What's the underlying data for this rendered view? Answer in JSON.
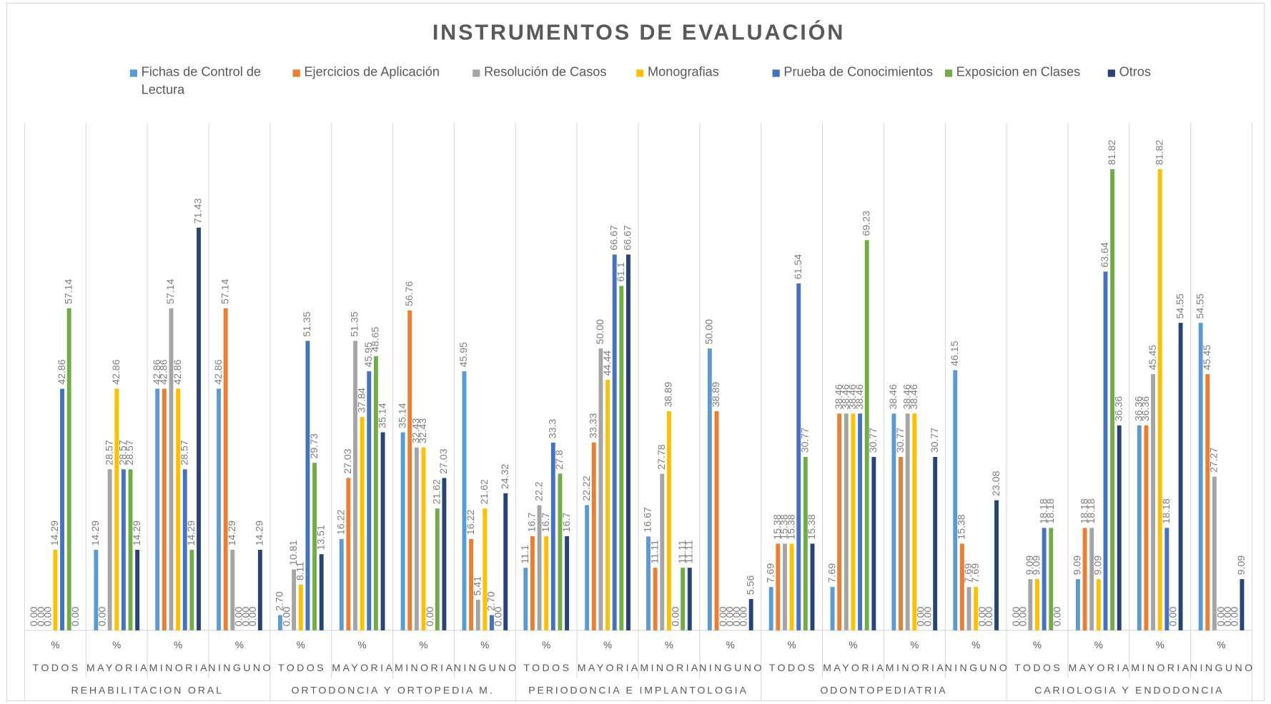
{
  "chart_data": {
    "type": "bar",
    "title": "INSTRUMENTOS  DE EVALUACIÓN",
    "category_unit": "%",
    "categories": [
      "TODOS",
      "MAYORIA",
      "MINORIA",
      "NINGUNO",
      "TODOS",
      "MAYORIA",
      "MINORIA",
      "NINGUNO",
      "TODOS",
      "MAYORIA",
      "MINORIA",
      "NINGUNO",
      "TODOS",
      "MAYORIA",
      "MINORIA",
      "NINGUNO",
      "TODOS",
      "MAYORIA",
      "MINORIA",
      "NINGUNO"
    ],
    "groups": [
      "REHABILITACION ORAL",
      "ORTODONCIA Y ORTOPEDIA M.",
      "PERIODONCIA E IMPLANTOLOGIA",
      "ODONTOPEDIATRIA",
      "CARIOLOGIA Y ENDODONCIA"
    ],
    "ylim": [
      0,
      90
    ],
    "series": [
      {
        "name": "Fichas de Control de Lectura",
        "color": "#5b9bd5",
        "values": [
          0,
          14.29,
          42.86,
          42.86,
          2.7,
          16.22,
          35.14,
          45.95,
          11.1,
          22.22,
          16.67,
          50.0,
          7.69,
          7.69,
          38.46,
          46.15,
          0,
          9.09,
          36.36,
          54.55
        ],
        "value_labels": [
          "0.00",
          "14.29",
          "42.86",
          "42.86",
          "2.70",
          "16.22",
          "35.14",
          "45.95",
          "11.1",
          "22.22",
          "16.67",
          "50.00",
          "7.69",
          "7.69",
          "38.46",
          "46.15",
          "0.00",
          "9.09",
          "36.36",
          "54.55"
        ]
      },
      {
        "name": "Ejercicios de Aplicación",
        "color": "#ed7d31",
        "values": [
          0,
          0,
          42.86,
          57.14,
          0,
          27.03,
          56.76,
          16.22,
          16.7,
          33.33,
          11.11,
          38.89,
          15.38,
          38.46,
          30.77,
          15.38,
          0,
          18.18,
          36.36,
          45.45
        ],
        "value_labels": [
          "0.00",
          "0.00",
          "42.86",
          "57.14",
          "0.00",
          "27.03",
          "56.76",
          "16.22",
          "16.7",
          "33.33",
          "11.11",
          "38.89",
          "15.38",
          "38.46",
          "30.77",
          "15.38",
          "0.00",
          "18.18",
          "36.36",
          "45.45"
        ]
      },
      {
        "name": "Resolución de Casos",
        "color": "#a5a5a5",
        "values": [
          0,
          28.57,
          57.14,
          14.29,
          10.81,
          51.35,
          32.43,
          5.41,
          22.2,
          50.0,
          27.78,
          0,
          15.38,
          38.46,
          38.46,
          7.69,
          9.09,
          18.18,
          45.45,
          27.27
        ],
        "value_labels": [
          "0.00",
          "28.57",
          "57.14",
          "14.29",
          "10.81",
          "51.35",
          "32.43",
          "5.41",
          "22.2",
          "50.00",
          "27.78",
          "0.00",
          "15.38",
          "38.46",
          "38.46",
          "7.69",
          "9.09",
          "18.18",
          "45.45",
          "27.27"
        ]
      },
      {
        "name": "Monografias",
        "color": "#ffc000",
        "values": [
          14.29,
          42.86,
          42.86,
          0,
          8.11,
          37.84,
          32.43,
          21.62,
          16.7,
          44.44,
          38.89,
          0,
          15.38,
          38.46,
          38.46,
          7.69,
          9.09,
          9.09,
          81.82,
          0
        ],
        "value_labels": [
          "14.29",
          "42.86",
          "42.86",
          "0.00",
          "8.11",
          "37.84",
          "32.43",
          "21.62",
          "16.7",
          "44.44",
          "38.89",
          "0.00",
          "15.38",
          "38.46",
          "38.46",
          "7.69",
          "9.09",
          "9.09",
          "81.82",
          "0.00"
        ]
      },
      {
        "name": "Prueba de Conocimientos",
        "color": "#4472c4",
        "values": [
          42.86,
          28.57,
          28.57,
          0,
          51.35,
          45.95,
          0,
          2.7,
          33.3,
          66.67,
          0,
          0,
          61.54,
          38.46,
          0,
          0,
          18.18,
          63.64,
          18.18,
          0
        ],
        "value_labels": [
          "42.86",
          "28.57",
          "28.57",
          "0.00",
          "51.35",
          "45.95",
          "0.00",
          "2.70",
          "33.3",
          "66.67",
          "0.00",
          "0.00",
          "61.54",
          "38.46",
          "0.00",
          "0.00",
          "18.18",
          "63.64",
          "18.18",
          "0.00"
        ]
      },
      {
        "name": "Exposicion en Clases",
        "color": "#70ad47",
        "values": [
          57.14,
          28.57,
          14.29,
          0,
          29.73,
          48.65,
          21.62,
          0,
          27.8,
          61.1,
          11.11,
          0,
          30.77,
          69.23,
          0,
          0,
          18.18,
          81.82,
          0,
          0
        ],
        "value_labels": [
          "57.14",
          "28.57",
          "14.29",
          "0.00",
          "29.73",
          "48.65",
          "21.62",
          "0.00",
          "27.8",
          "61.1",
          "11.11",
          "0.00",
          "30.77",
          "69.23",
          "0.00",
          "0.00",
          "18.18",
          "81.82",
          "0.00",
          "0.00"
        ]
      },
      {
        "name": "Otros",
        "color": "#264478",
        "values": [
          0,
          14.29,
          71.43,
          14.29,
          13.51,
          35.14,
          27.03,
          24.32,
          16.7,
          66.67,
          11.11,
          5.56,
          15.38,
          30.77,
          30.77,
          23.08,
          0,
          36.36,
          54.55,
          9.09
        ],
        "value_labels": [
          "0.00",
          "14.29",
          "71.43",
          "14.29",
          "13.51",
          "35.14",
          "27.03",
          "24.32",
          "16.7",
          "66.67",
          "11.11",
          "5.56",
          "15.38",
          "30.77",
          "30.77",
          "23.08",
          "0.00",
          "36.36",
          "54.55",
          "9.09"
        ]
      }
    ]
  }
}
